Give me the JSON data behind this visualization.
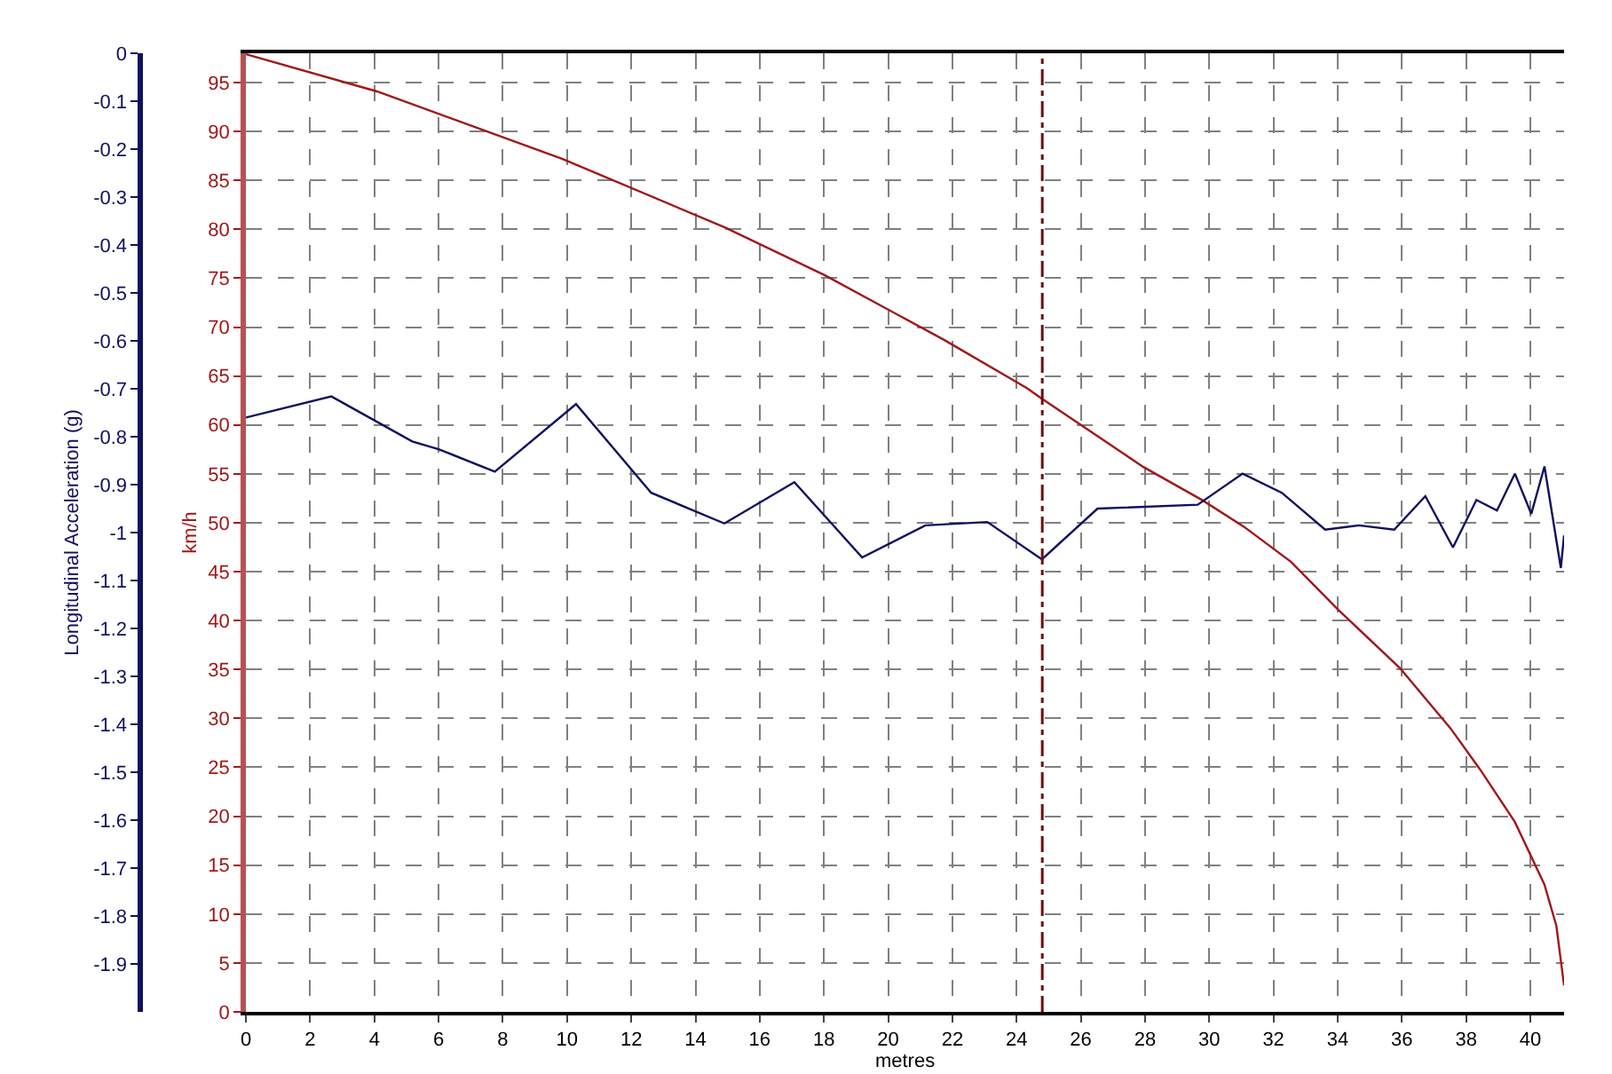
{
  "chart_data": {
    "type": "line",
    "xlabel": "metres",
    "ylabel": "km/h",
    "y2label": "Longitudinal Acceleration (g)",
    "xlim": [
      0,
      41.05
    ],
    "xticks": [
      0,
      2,
      4,
      6,
      8,
      10,
      12,
      14,
      16,
      18,
      20,
      22,
      24,
      26,
      28,
      30,
      32,
      34,
      36,
      38,
      40
    ],
    "ylim": [
      0,
      98
    ],
    "yticks": [
      0,
      5,
      10,
      15,
      20,
      25,
      30,
      35,
      40,
      45,
      50,
      55,
      60,
      65,
      70,
      75,
      80,
      85,
      90,
      95
    ],
    "y2lim": [
      -2,
      0
    ],
    "y2ticks": [
      0,
      -0.1,
      -0.2,
      -0.3,
      -0.4,
      -0.5,
      -0.6,
      -0.7,
      -0.8,
      -0.9,
      -1,
      -1.1,
      -1.2,
      -1.3,
      -1.4,
      -1.5,
      -1.6,
      -1.7,
      -1.8,
      -1.9
    ],
    "grid": true,
    "line_style": "solid",
    "series": [
      {
        "color": "#a01818",
        "x": [
          0,
          4.08,
          9.86,
          14.91,
          18.03,
          21.74,
          24.31,
          24.74,
          27.95,
          29.79,
          31.08,
          32.55,
          34.02,
          35.95,
          37.51,
          38.43,
          39.52,
          40.44,
          40.81,
          41.05
        ],
        "values": [
          97.9,
          94.1,
          87.2,
          80.2,
          75.3,
          68.7,
          63.8,
          62.8,
          55.7,
          52.3,
          49.6,
          46.0,
          41.1,
          35.1,
          29.0,
          24.8,
          19.4,
          13.0,
          8.8,
          2.7
        ]
      },
      {
        "color": "#101060",
        "axis": "y2",
        "x": [
          0,
          2.66,
          5.18,
          6.0,
          7.75,
          10.28,
          12.62,
          14.9,
          17.08,
          19.19,
          21.16,
          23.09,
          24.79,
          26.52,
          29.64,
          31.04,
          32.26,
          33.61,
          34.66,
          35.76,
          36.73,
          37.59,
          38.32,
          38.96,
          39.52,
          40.03,
          40.44,
          40.95,
          41.05
        ],
        "values": [
          -0.76,
          -0.716,
          -0.81,
          -0.826,
          -0.873,
          -0.732,
          -0.917,
          -0.981,
          -0.895,
          -1.052,
          -0.985,
          -0.978,
          -1.056,
          -0.95,
          -0.942,
          -0.877,
          -0.917,
          -0.994,
          -0.985,
          -0.994,
          -0.924,
          -1.031,
          -0.932,
          -0.954,
          -0.877,
          -0.961,
          -0.862,
          -1.074,
          -1.006
        ]
      }
    ],
    "ref_lines": [
      {
        "axis": "x",
        "value": 24.8,
        "color": "#6a1010",
        "line_style": "dashed"
      }
    ]
  }
}
